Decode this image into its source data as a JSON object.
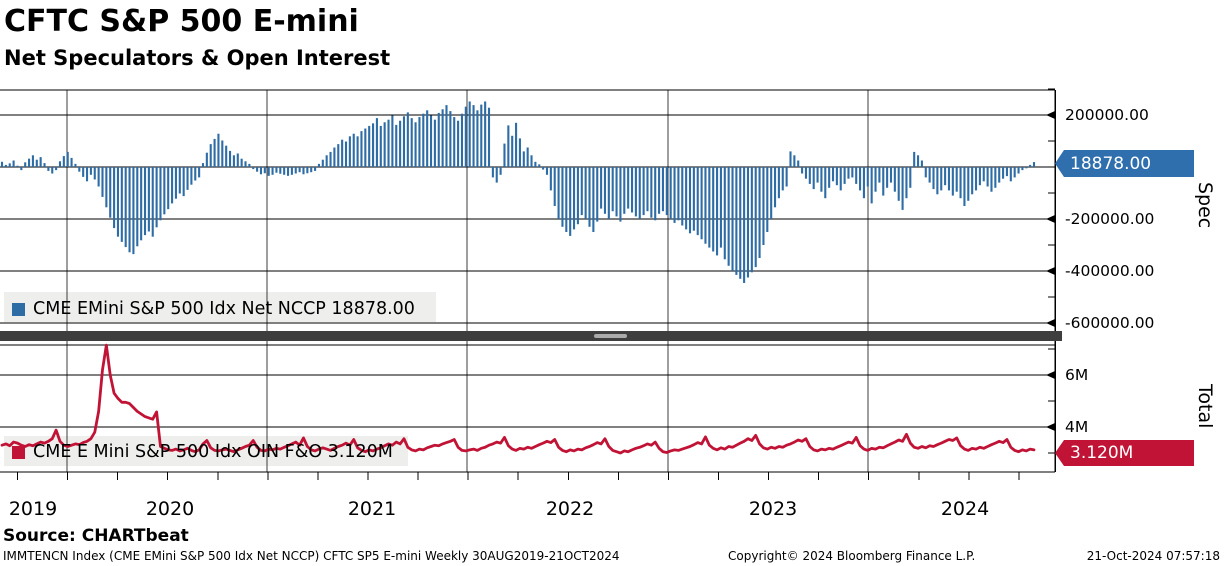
{
  "title": "CFTC S&P 500 E-mini",
  "subtitle": "Net Speculators & Open Interest",
  "source": "Source: CHARTbeat",
  "footer": {
    "left": "IMMTENCN Index (CME EMini S&P 500 Idx Net NCCP) CFTC SP5 E-mini  Weekly 30AUG2019-21OCT2024",
    "center": "Copyright© 2024 Bloomberg Finance L.P.",
    "right": "21-Oct-2024 07:57:18"
  },
  "colors": {
    "spec_blue": "#2e6ca6",
    "total_red": "#c11335",
    "badge_blue": "#2f6fae",
    "badge_red": "#c11335",
    "legend_bg": "#ededeb",
    "separator": "#3e3e3e",
    "grid": "#000000",
    "year_grid": "#3c3c3c"
  },
  "top_panel": {
    "legend": "CME EMini S&P 500 Idx Net NCCP 18878.00",
    "axis_label": "Spec",
    "badge": "18878.00",
    "yticks": [
      {
        "label": "200000.00",
        "value": 200000
      },
      {
        "label": "-200000.00",
        "value": -200000
      },
      {
        "label": "-400000.00",
        "value": -400000
      },
      {
        "label": "-600000.00",
        "value": -600000
      }
    ]
  },
  "bottom_panel": {
    "legend": "CME E Mini S&P 500 Idx OIN F&O 3.120M",
    "axis_label": "Total",
    "badge": "3.120M",
    "yticks": [
      {
        "label": "6M",
        "value": 6000000
      },
      {
        "label": "4M",
        "value": 4000000
      }
    ]
  },
  "x_axis": {
    "year_labels": [
      "2019",
      "2020",
      "2021",
      "2022",
      "2023",
      "2024"
    ]
  },
  "chart_data": [
    {
      "type": "bar",
      "name": "CME EMini S&P 500 Idx Net NCCP",
      "panel": "Spec",
      "frequency": "Weekly",
      "start": "30AUG2019",
      "end": "21OCT2024",
      "unit": "thousands of contracts (net speculators)",
      "last_value": 18878,
      "ylim_thousands": [
        -650,
        300
      ],
      "ytick_values_thousands": [
        200,
        -200,
        -400,
        -600
      ],
      "values_thousands": [
        20,
        8,
        14,
        25,
        5,
        -12,
        18,
        32,
        45,
        28,
        38,
        15,
        -15,
        -25,
        -12,
        22,
        42,
        58,
        35,
        12,
        -18,
        -38,
        -55,
        -30,
        -48,
        -75,
        -115,
        -155,
        -195,
        -235,
        -268,
        -288,
        -308,
        -328,
        -335,
        -305,
        -282,
        -262,
        -248,
        -268,
        -232,
        -205,
        -182,
        -162,
        -140,
        -122,
        -102,
        -112,
        -88,
        -68,
        -52,
        -40,
        15,
        55,
        88,
        108,
        128,
        102,
        82,
        62,
        45,
        52,
        32,
        22,
        12,
        -8,
        -18,
        -28,
        -24,
        -34,
        -30,
        -22,
        -26,
        -30,
        -34,
        -30,
        -25,
        -20,
        -28,
        -24,
        -20,
        -15,
        12,
        28,
        45,
        58,
        75,
        88,
        105,
        98,
        118,
        128,
        118,
        138,
        148,
        158,
        168,
        188,
        158,
        172,
        182,
        198,
        162,
        178,
        195,
        210,
        188,
        172,
        192,
        205,
        218,
        198,
        182,
        208,
        222,
        238,
        215,
        192,
        178,
        205,
        232,
        252,
        238,
        218,
        240,
        252,
        228,
        -40,
        -60,
        -30,
        90,
        160,
        120,
        170,
        110,
        60,
        75,
        45,
        20,
        10,
        -10,
        -30,
        -90,
        -150,
        -200,
        -230,
        -250,
        -265,
        -240,
        -220,
        -185,
        -200,
        -230,
        -250,
        -210,
        -160,
        -180,
        -200,
        -170,
        -190,
        -210,
        -180,
        -160,
        -175,
        -190,
        -200,
        -185,
        -170,
        -195,
        -205,
        -180,
        -170,
        -185,
        -200,
        -215,
        -205,
        -225,
        -240,
        -255,
        -245,
        -262,
        -278,
        -295,
        -310,
        -325,
        -340,
        -310,
        -355,
        -380,
        -400,
        -415,
        -430,
        -446,
        -425,
        -405,
        -385,
        -350,
        -300,
        -250,
        -200,
        -155,
        -120,
        -90,
        -75,
        60,
        45,
        25,
        -25,
        -45,
        -65,
        -85,
        -60,
        -95,
        -120,
        -80,
        -55,
        -70,
        -90,
        -65,
        -45,
        -40,
        -65,
        -90,
        -120,
        -75,
        -140,
        -95,
        -60,
        -110,
        -80,
        -60,
        -95,
        -130,
        -165,
        -120,
        -80,
        58,
        45,
        25,
        -40,
        -60,
        -85,
        -105,
        -90,
        -70,
        -90,
        -110,
        -95,
        -120,
        -150,
        -130,
        -105,
        -90,
        -70,
        -55,
        -75,
        -95,
        -80,
        -60,
        -45,
        -35,
        -55,
        -40,
        -25,
        -12,
        -5,
        8,
        18.878
      ]
    },
    {
      "type": "line",
      "name": "CME E Mini S&P 500 Idx OIN F&O",
      "panel": "Total",
      "frequency": "Weekly",
      "start": "30AUG2019",
      "end": "21OCT2024",
      "unit": "millions of contracts (open interest futures & options)",
      "last_value": "3.120M",
      "ylim_millions": [
        2.4,
        7.3
      ],
      "ytick_values_millions": [
        6,
        4
      ],
      "values_millions": [
        3.3,
        3.35,
        3.28,
        3.42,
        3.38,
        3.3,
        3.25,
        3.32,
        3.28,
        3.35,
        3.42,
        3.38,
        3.45,
        3.55,
        3.88,
        3.45,
        3.3,
        3.25,
        3.3,
        3.35,
        3.32,
        3.4,
        3.45,
        3.55,
        3.8,
        4.6,
        6.2,
        7.15,
        6.0,
        5.3,
        5.1,
        4.95,
        4.95,
        4.9,
        4.75,
        4.6,
        4.5,
        4.4,
        4.35,
        4.3,
        4.58,
        3.25,
        3.18,
        3.12,
        3.1,
        3.15,
        3.08,
        3.12,
        3.18,
        3.1,
        3.05,
        3.12,
        3.35,
        3.48,
        3.2,
        3.1,
        3.08,
        3.12,
        3.15,
        3.1,
        3.05,
        3.12,
        3.18,
        3.25,
        3.3,
        3.48,
        3.22,
        3.1,
        3.08,
        3.15,
        3.12,
        3.18,
        3.15,
        3.22,
        3.28,
        3.35,
        3.42,
        3.3,
        3.58,
        3.25,
        3.12,
        3.08,
        3.15,
        3.2,
        3.15,
        3.1,
        3.18,
        3.25,
        3.3,
        3.38,
        3.3,
        3.52,
        3.2,
        3.1,
        3.05,
        3.12,
        3.08,
        3.15,
        3.2,
        3.28,
        3.35,
        3.3,
        3.42,
        3.35,
        3.55,
        3.22,
        3.12,
        3.08,
        3.15,
        3.12,
        3.2,
        3.25,
        3.3,
        3.28,
        3.35,
        3.4,
        3.45,
        3.52,
        3.22,
        3.1,
        3.08,
        3.12,
        3.15,
        3.1,
        3.18,
        3.22,
        3.3,
        3.35,
        3.42,
        3.38,
        3.6,
        3.28,
        3.15,
        3.1,
        3.18,
        3.15,
        3.22,
        3.18,
        3.25,
        3.32,
        3.38,
        3.45,
        3.4,
        3.52,
        3.22,
        3.1,
        3.05,
        3.12,
        3.08,
        3.15,
        3.12,
        3.2,
        3.25,
        3.32,
        3.4,
        3.35,
        3.55,
        3.25,
        3.1,
        3.05,
        3.0,
        3.08,
        3.05,
        3.12,
        3.18,
        3.22,
        3.28,
        3.35,
        3.3,
        3.42,
        3.18,
        3.05,
        3.02,
        3.08,
        3.12,
        3.1,
        3.15,
        3.2,
        3.25,
        3.32,
        3.4,
        3.35,
        3.62,
        3.3,
        3.18,
        3.12,
        3.2,
        3.15,
        3.25,
        3.22,
        3.3,
        3.38,
        3.45,
        3.55,
        3.48,
        3.68,
        3.35,
        3.2,
        3.15,
        3.22,
        3.18,
        3.25,
        3.22,
        3.3,
        3.35,
        3.42,
        3.5,
        3.45,
        3.55,
        3.25,
        3.12,
        3.08,
        3.15,
        3.12,
        3.18,
        3.15,
        3.22,
        3.28,
        3.35,
        3.42,
        3.38,
        3.6,
        3.28,
        3.15,
        3.1,
        3.18,
        3.15,
        3.22,
        3.2,
        3.28,
        3.35,
        3.42,
        3.5,
        3.45,
        3.72,
        3.38,
        3.22,
        3.18,
        3.25,
        3.2,
        3.28,
        3.25,
        3.32,
        3.38,
        3.45,
        3.52,
        3.48,
        3.58,
        3.28,
        3.15,
        3.1,
        3.18,
        3.15,
        3.22,
        3.18,
        3.25,
        3.32,
        3.38,
        3.45,
        3.4,
        3.52,
        3.22,
        3.1,
        3.05,
        3.12,
        3.08,
        3.15,
        3.12
      ]
    }
  ]
}
